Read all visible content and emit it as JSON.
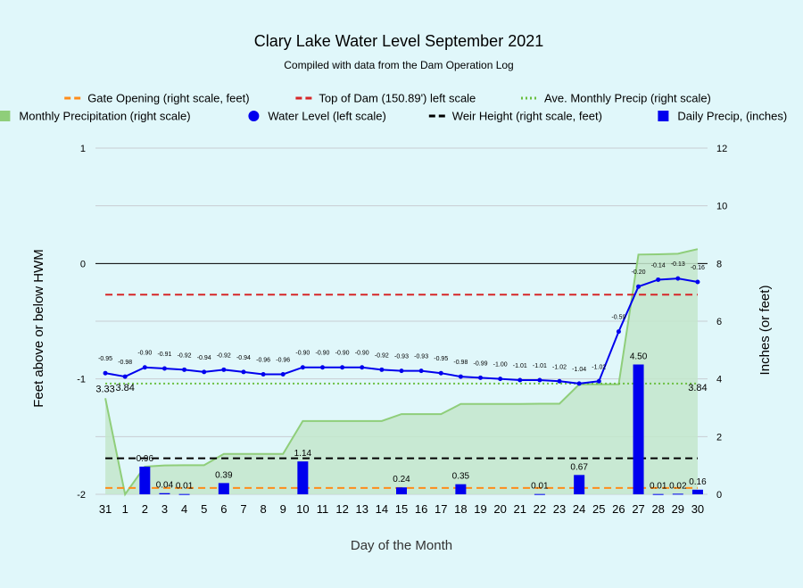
{
  "chart_data": {
    "type": "line",
    "title": "Clary Lake Water Level September 2021",
    "subtitle": "Compiled with data from the Dam Operation Log",
    "xlabel": "Day of the Month",
    "ylabel_left": "Feet above or below HWM",
    "ylabel_right": "Inches (or feet)",
    "ylim_left": [
      -2,
      1
    ],
    "ylim_right": [
      0,
      12
    ],
    "yticks_left": [
      -2,
      -1,
      0,
      1
    ],
    "yticks_right": [
      0,
      2,
      4,
      6,
      8,
      10,
      12
    ],
    "categories": [
      "31",
      "1",
      "2",
      "3",
      "4",
      "5",
      "6",
      "7",
      "8",
      "9",
      "10",
      "11",
      "12",
      "13",
      "14",
      "15",
      "16",
      "17",
      "18",
      "19",
      "20",
      "21",
      "22",
      "23",
      "24",
      "25",
      "26",
      "27",
      "28",
      "29",
      "30"
    ],
    "grid": true,
    "legend_position": "top",
    "legend": [
      {
        "label": "Gate Opening (right scale, feet)",
        "kind": "dash",
        "color": "#ff8c1a"
      },
      {
        "label": "Top of Dam (150.89') left scale",
        "kind": "dash",
        "color": "#d62728"
      },
      {
        "label": "Ave. Monthly Precip (right scale)",
        "kind": "dot",
        "color": "#6abf40"
      },
      {
        "label": "Monthly Precipitation (right scale)",
        "kind": "area",
        "color": "#8fce7a"
      },
      {
        "label": "Water Level (left scale)",
        "kind": "marker",
        "color": "#0000ee"
      },
      {
        "label": "Weir Height (right scale, feet)",
        "kind": "dash",
        "color": "#000000"
      },
      {
        "label": "Daily Precip, (inches)",
        "kind": "bar",
        "color": "#0000ee"
      }
    ],
    "series": [
      {
        "name": "Water Level (left scale)",
        "type": "line",
        "axis": "left",
        "color": "#0000ee",
        "values": [
          -0.95,
          -0.98,
          -0.9,
          -0.91,
          -0.92,
          -0.94,
          -0.92,
          -0.94,
          -0.96,
          -0.96,
          -0.9,
          -0.9,
          -0.9,
          -0.9,
          -0.92,
          -0.93,
          -0.93,
          -0.95,
          -0.98,
          -0.99,
          -1.0,
          -1.01,
          -1.01,
          -1.02,
          -1.04,
          -1.02,
          -0.59,
          -0.2,
          -0.14,
          -0.13,
          -0.16
        ],
        "labels": [
          "-0.95",
          "-0.98",
          "-0.90",
          "-0.91",
          "-0.92",
          "-0.94",
          "-0.92",
          "-0.94",
          "-0.96",
          "-0.96",
          "-0.90",
          "-0.90",
          "-0.90",
          "-0.90",
          "-0.92",
          "-0.93",
          "-0.93",
          "-0.95",
          "-0.98",
          "-0.99",
          "-1.00",
          "-1.01",
          "-1.01",
          "-1.02",
          "-1.04",
          "-1.02",
          "-0.59",
          "-0.20",
          "-0.14",
          "-0.13",
          "-0.16"
        ]
      },
      {
        "name": "Monthly Precipitation (right scale)",
        "type": "area",
        "axis": "right",
        "color": "#8fce7a",
        "values": [
          3.33,
          0,
          0.96,
          1.0,
          1.01,
          1.01,
          1.4,
          1.4,
          1.4,
          1.4,
          2.54,
          2.54,
          2.54,
          2.54,
          2.54,
          2.78,
          2.78,
          2.78,
          3.13,
          3.13,
          3.13,
          3.13,
          3.14,
          3.14,
          3.81,
          3.81,
          3.81,
          8.31,
          8.32,
          8.34,
          8.5
        ]
      },
      {
        "name": "Daily Precip, (inches)",
        "type": "bar",
        "axis": "right",
        "color": "#0000ee",
        "values": [
          0,
          0,
          0.96,
          0.04,
          0.01,
          0,
          0.39,
          0,
          0,
          0,
          1.14,
          0,
          0,
          0,
          0,
          0.24,
          0,
          0,
          0.35,
          0,
          0,
          0,
          0.01,
          0,
          0.67,
          0,
          0,
          4.5,
          0.01,
          0.02,
          0.16
        ],
        "labels": [
          "",
          "",
          "0.96",
          "0.04",
          "0.01",
          "",
          "0.39",
          "",
          "",
          "",
          "1.14",
          "",
          "",
          "",
          "",
          "0.24",
          "",
          "",
          "0.35",
          "",
          "",
          "",
          "0.01",
          "",
          "0.67",
          "",
          "",
          "4.50",
          "0.01",
          "0.02",
          "0.16"
        ]
      },
      {
        "name": "Top of Dam (150.89') left scale",
        "type": "hline",
        "axis": "left",
        "color": "#d62728",
        "value": -0.27
      },
      {
        "name": "Ave. Monthly Precip (right scale)",
        "type": "hline",
        "axis": "right",
        "color": "#6abf40",
        "value": 3.84
      },
      {
        "name": "Weir Height (right scale, feet)",
        "type": "hline",
        "axis": "right",
        "color": "#000000",
        "value": 1.25
      },
      {
        "name": "Gate Opening (right scale, feet)",
        "type": "hline",
        "axis": "right",
        "color": "#ff8c1a",
        "value": 0.22
      }
    ],
    "annotations": [
      {
        "text": "3.33",
        "x": "31"
      },
      {
        "text": "3.84",
        "x": "1"
      },
      {
        "text": "3.84",
        "x": "30"
      }
    ]
  }
}
